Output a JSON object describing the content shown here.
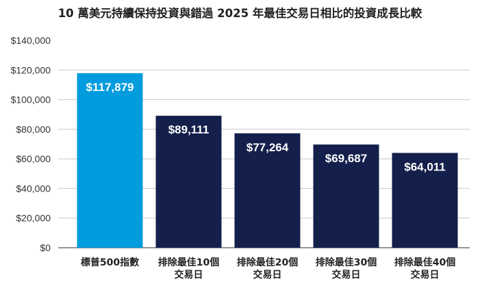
{
  "chart_data": {
    "type": "bar",
    "title": "10 萬美元持續保持投資與錯過 2025 年最佳交易日相比的投資成長比較",
    "categories": [
      [
        "標普500指數"
      ],
      [
        "排除最佳10個",
        "交易日"
      ],
      [
        "排除最佳20個",
        "交易日"
      ],
      [
        "排除最佳30個",
        "交易日"
      ],
      [
        "排除最佳40個",
        "交易日"
      ]
    ],
    "values": [
      117879,
      89111,
      77264,
      69687,
      64011
    ],
    "data_labels": [
      "$117,879",
      "$89,111",
      "$77,264",
      "$69,687",
      "$64,011"
    ],
    "ylim": [
      0,
      140000
    ],
    "y_ticks": [
      0,
      20000,
      40000,
      60000,
      80000,
      100000,
      120000,
      140000
    ],
    "y_tick_labels": [
      "$0",
      "$20,000",
      "$40,000",
      "$60,000",
      "$80,000",
      "$100,000",
      "$120,000",
      "$140,000"
    ],
    "xlabel": "",
    "ylabel": "",
    "grid": true,
    "bar_colors": [
      "#009cde",
      "#141f4b",
      "#141f4b",
      "#141f4b",
      "#141f4b"
    ],
    "gridline_color": "#c8c8c8"
  }
}
